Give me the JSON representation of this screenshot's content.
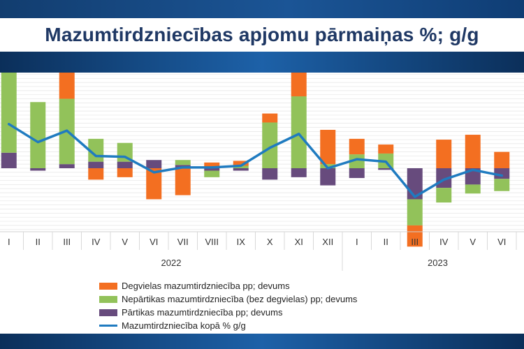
{
  "title": "Mazumtirdzniecības apjomu pārmaiņas %; g/g",
  "chart_data": {
    "type": "bar",
    "stacked": true,
    "categories": [
      "I",
      "II",
      "III",
      "IV",
      "V",
      "VI",
      "VII",
      "VIII",
      "IX",
      "X",
      "XI",
      "XII",
      "I",
      "II",
      "III",
      "IV",
      "V",
      "VI"
    ],
    "year_groups": [
      {
        "label": "2022",
        "start": 0,
        "end": 11
      },
      {
        "label": "2023",
        "start": 12,
        "end": 17
      }
    ],
    "series": [
      {
        "name": "Pārtikas mazumtirdzniecība pp; devums",
        "kind": "bar",
        "color": "#674b7d",
        "values": [
          1.9,
          -0.3,
          0.5,
          0.8,
          0.8,
          1.0,
          0.4,
          -0.3,
          -0.3,
          -1.4,
          -1.1,
          -2.1,
          -1.2,
          -0.2,
          -3.8,
          -2.4,
          -2.0,
          -1.3
        ]
      },
      {
        "name": "Nepārtikas mazumtirdzniecība (bez degvielas) pp; devums",
        "kind": "bar",
        "color": "#92c25a",
        "values": [
          10.9,
          8.1,
          8.0,
          2.8,
          2.3,
          0.0,
          0.6,
          -0.8,
          0.3,
          5.6,
          8.8,
          0.5,
          1.7,
          1.8,
          -3.2,
          -1.8,
          -1.1,
          -1.5
        ]
      },
      {
        "name": "Degvielas mazumtirdzniecība pp; devums",
        "kind": "bar",
        "color": "#f36f21",
        "values": [
          0.7,
          0.0,
          4.9,
          -1.4,
          -1.1,
          -3.8,
          -3.3,
          0.7,
          0.6,
          1.1,
          3.4,
          4.2,
          1.9,
          1.1,
          -2.6,
          3.5,
          4.1,
          2.0
        ]
      },
      {
        "name": "Mazumtirdzniecība kopā % g/g",
        "kind": "line",
        "color": "#1f7bc0",
        "values": [
          5.4,
          3.2,
          4.6,
          1.5,
          1.4,
          -0.5,
          0.1,
          0.1,
          0.3,
          2.5,
          4.2,
          0.0,
          1.1,
          0.8,
          -3.5,
          -1.4,
          -0.2,
          -0.9
        ]
      }
    ],
    "ylim": [
      -11,
      13.5
    ],
    "gridlines": true,
    "legend_position": "bottom"
  }
}
